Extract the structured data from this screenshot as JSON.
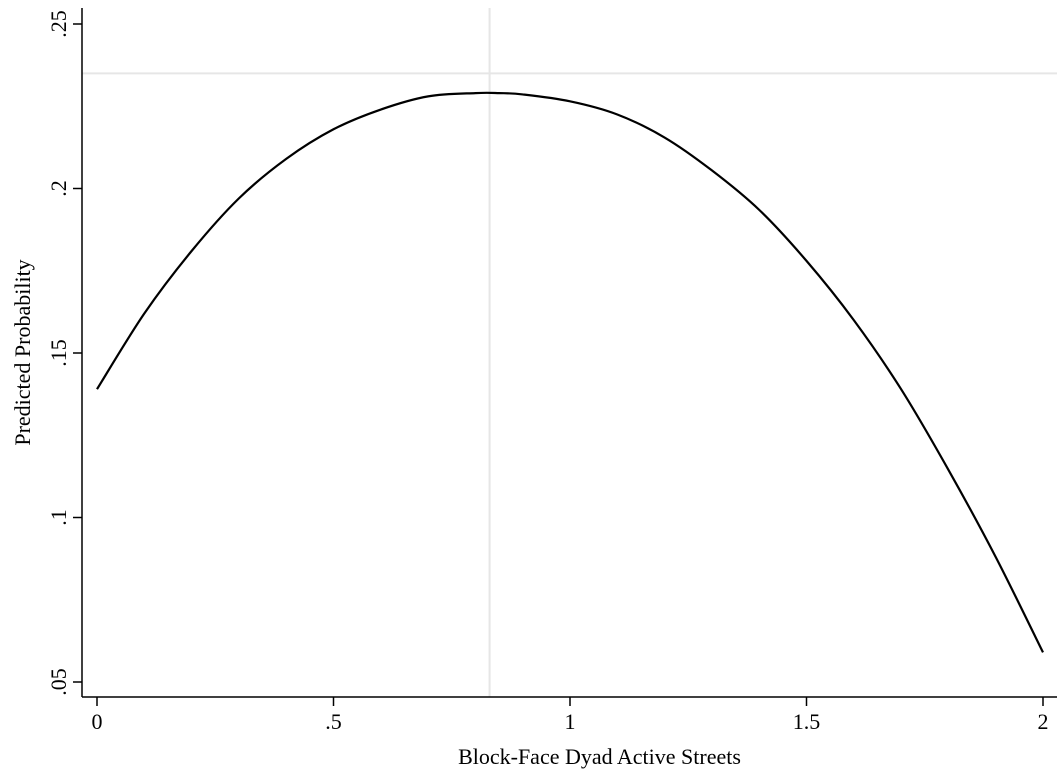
{
  "chart_data": {
    "type": "line",
    "title": "",
    "xlabel": "Block-Face Dyad Active Streets",
    "ylabel": "Predicted Probability",
    "xlim": [
      0,
      2
    ],
    "ylim": [
      0.05,
      0.25
    ],
    "x_ticks": [
      {
        "value": 0,
        "label": "0"
      },
      {
        "value": 0.5,
        "label": ".5"
      },
      {
        "value": 1,
        "label": "1"
      },
      {
        "value": 1.5,
        "label": "1.5"
      },
      {
        "value": 2,
        "label": "2"
      }
    ],
    "y_ticks": [
      {
        "value": 0.05,
        "label": ".05"
      },
      {
        "value": 0.1,
        "label": ".1"
      },
      {
        "value": 0.15,
        "label": ".15"
      },
      {
        "value": 0.2,
        "label": ".2"
      },
      {
        "value": 0.25,
        "label": ".25"
      }
    ],
    "reference_lines": {
      "vertical_x": 0.83,
      "horizontal_y": 0.235,
      "color": "#e6e6e6"
    },
    "grid": false,
    "legend": "none",
    "line_color": "#000000",
    "series": [
      {
        "x": [
          0,
          0.1,
          0.2,
          0.3,
          0.4,
          0.5,
          0.6,
          0.7,
          0.8,
          0.85,
          0.9,
          1.0,
          1.1,
          1.2,
          1.3,
          1.4,
          1.5,
          1.6,
          1.7,
          1.8,
          1.9,
          2.0
        ],
        "values": [
          0.139,
          0.162,
          0.181,
          0.197,
          0.209,
          0.218,
          0.224,
          0.228,
          0.229,
          0.229,
          0.2286,
          0.2265,
          0.2225,
          0.2155,
          0.2055,
          0.1935,
          0.178,
          0.16,
          0.139,
          0.1145,
          0.088,
          0.059
        ]
      }
    ]
  }
}
